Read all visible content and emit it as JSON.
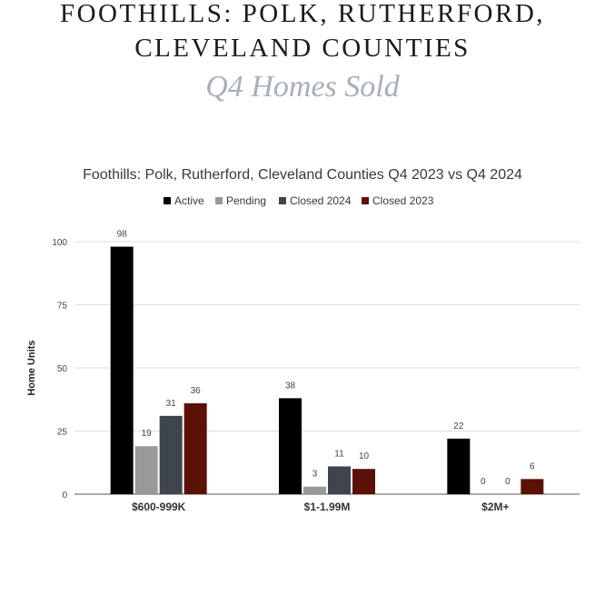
{
  "header": {
    "title_line1": "FOOTHILLS: POLK, RUTHERFORD,",
    "title_line2": "CLEVELAND COUNTIES",
    "subtitle": "Q4 Homes Sold"
  },
  "chart_data": {
    "type": "bar",
    "title": "Foothills: Polk, Rutherford, Cleveland Counties Q4 2023 vs Q4 2024",
    "xlabel": "",
    "ylabel": "Home Units",
    "categories": [
      "$600-999K",
      "$1-1.99M",
      "$2M+"
    ],
    "series": [
      {
        "name": "Active",
        "values": [
          98,
          38,
          22
        ],
        "color": "#000000"
      },
      {
        "name": "Pending",
        "values": [
          19,
          3,
          0
        ],
        "color": "#999999"
      },
      {
        "name": "Closed 2024",
        "values": [
          31,
          11,
          0
        ],
        "color": "#3f454c"
      },
      {
        "name": "Closed 2023",
        "values": [
          36,
          10,
          6
        ],
        "color": "#5c1108"
      }
    ],
    "ylim": [
      0,
      100
    ],
    "yticks": [
      0,
      25,
      50,
      75,
      100
    ],
    "grid": true,
    "legend_position": "top"
  }
}
